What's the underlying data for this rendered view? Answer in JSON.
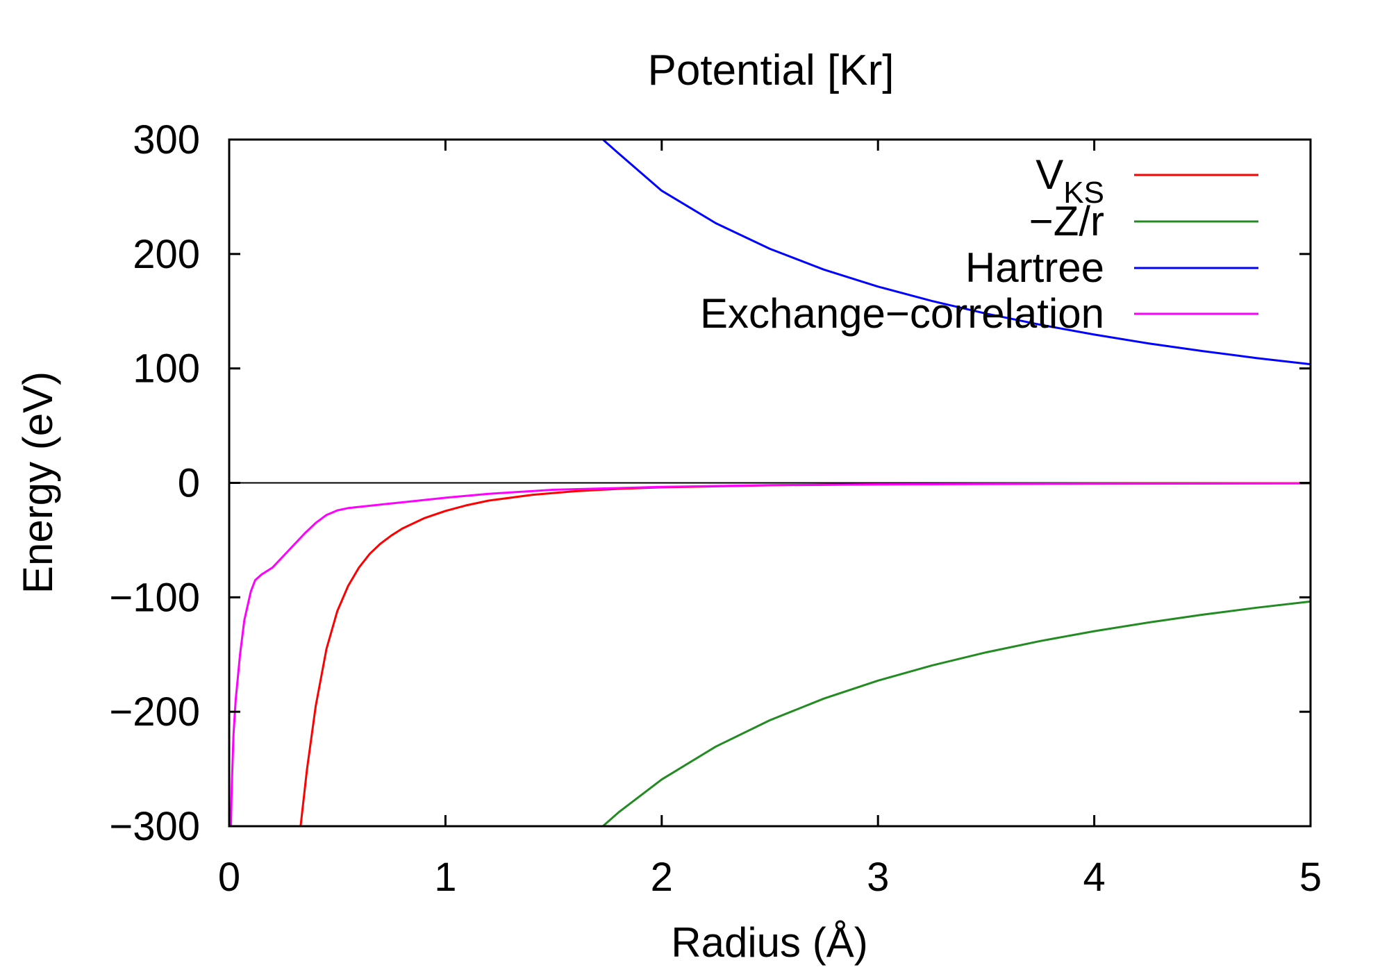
{
  "chart_data": {
    "type": "line",
    "title": "Potential [Kr]",
    "xlabel": "Radius (Å)",
    "ylabel": "Energy (eV)",
    "xlim": [
      0,
      5
    ],
    "ylim": [
      -300,
      300
    ],
    "x_ticks": [
      0,
      1,
      2,
      3,
      4,
      5
    ],
    "x_tick_labels": [
      "0",
      "1",
      "2",
      "3",
      "4",
      "5"
    ],
    "y_ticks": [
      -300,
      -200,
      -100,
      0,
      100,
      200,
      300
    ],
    "y_tick_labels": [
      "−300",
      "−200",
      "−100",
      "0",
      "100",
      "200",
      "300"
    ],
    "zero_line": true,
    "grid": false,
    "legend_position": "top-right",
    "series": [
      {
        "name": "V",
        "name_subscript": "KS",
        "color": "#ff0000",
        "x": [
          0.33,
          0.36,
          0.4,
          0.45,
          0.5,
          0.55,
          0.6,
          0.65,
          0.7,
          0.75,
          0.8,
          0.9,
          1.0,
          1.1,
          1.2,
          1.4,
          1.6,
          1.8,
          2.0,
          2.5,
          3.0,
          3.5,
          4.0,
          4.5,
          5.0
        ],
        "y": [
          -300,
          -250,
          -195,
          -145,
          -112,
          -90,
          -74,
          -62,
          -53,
          -46,
          -40,
          -31,
          -24.5,
          -19.5,
          -15.5,
          -10.5,
          -7.3,
          -5.2,
          -3.9,
          -2.1,
          -1.3,
          -0.8,
          -0.55,
          -0.4,
          -0.3
        ]
      },
      {
        "name": "−Z/r",
        "color": "#228b22",
        "x": [
          1.728,
          1.8,
          2.0,
          2.25,
          2.5,
          2.75,
          3.0,
          3.25,
          3.5,
          3.75,
          4.0,
          4.25,
          4.5,
          4.75,
          5.0
        ],
        "y": [
          -300,
          -288,
          -259.2,
          -230.4,
          -207.4,
          -188.5,
          -172.8,
          -159.5,
          -148.1,
          -138.2,
          -129.6,
          -122.0,
          -115.2,
          -109.1,
          -103.7
        ]
      },
      {
        "name": "Hartree",
        "color": "#0000ff",
        "x": [
          1.728,
          1.8,
          2.0,
          2.25,
          2.5,
          2.75,
          3.0,
          3.25,
          3.5,
          3.75,
          4.0,
          4.25,
          4.5,
          4.75,
          5.0
        ],
        "y": [
          300,
          288,
          255.3,
          226.9,
          204.5,
          186.4,
          171.5,
          158.9,
          147.9,
          138.2,
          129.6,
          121.9,
          115.2,
          109.1,
          103.7
        ]
      },
      {
        "name": "Exchange−correlation",
        "color": "#ff00ff",
        "x": [
          0.008,
          0.012,
          0.02,
          0.03,
          0.05,
          0.07,
          0.1,
          0.12,
          0.15,
          0.2,
          0.25,
          0.3,
          0.35,
          0.4,
          0.45,
          0.5,
          0.55,
          0.6,
          0.7,
          0.8,
          1.0,
          1.2,
          1.5,
          2.0,
          2.5,
          3.0,
          4.0,
          5.0
        ],
        "y": [
          -300,
          -265,
          -220,
          -190,
          -150,
          -120,
          -95,
          -85,
          -80,
          -74,
          -64,
          -54,
          -44,
          -35,
          -28,
          -24,
          -22,
          -21,
          -19,
          -17,
          -13,
          -9.5,
          -6,
          -3.5,
          -2,
          -1.3,
          -0.7,
          -0.4
        ]
      }
    ]
  }
}
